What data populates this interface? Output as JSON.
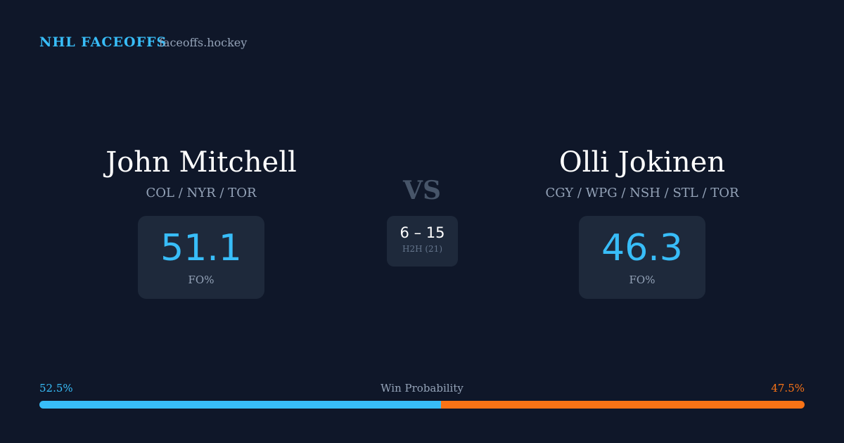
{
  "header": {
    "title": "NHL FACEOFFS",
    "site": "faceoffs.hockey"
  },
  "players": [
    {
      "name": "John Mitchell",
      "teams": "COL / NYR / TOR",
      "stat": "51.1",
      "stat_label": "FO%"
    },
    {
      "name": "Olli Jokinen",
      "teams": "CGY / WPG / NSH / STL / TOR",
      "stat": "46.3",
      "stat_label": "FO%"
    }
  ],
  "versus": {
    "label": "VS",
    "score": "6 – 15",
    "detail": "H2H (21)"
  },
  "win_probability": {
    "label": "Win Probability",
    "segments": [
      {
        "value": 52.5,
        "label": "52.5%",
        "color": "#38bdf8"
      },
      {
        "value": 47.5,
        "label": "47.5%",
        "color": "#f97316"
      }
    ]
  }
}
